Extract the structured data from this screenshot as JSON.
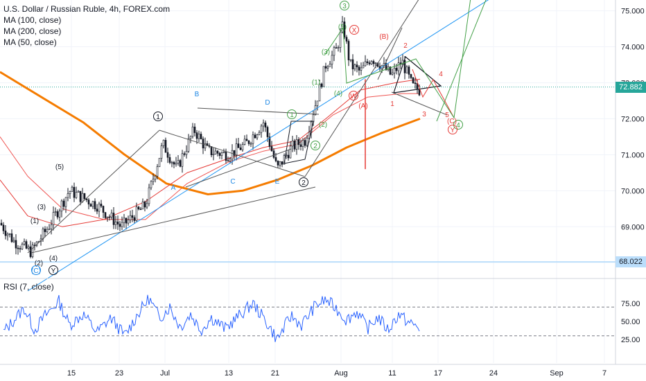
{
  "header": {
    "title": "U.S. Dollar / Russian Ruble, 4h, FOREX.com",
    "indicators": [
      "MA (100, close)",
      "MA (200, close)",
      "MA (50, close)"
    ],
    "rsi_label": "RSI (7, close)"
  },
  "price_tags": {
    "current": "72.882",
    "level": "68.022"
  },
  "colors": {
    "price": "#131722",
    "ma100": "#ef5350",
    "ma200": "#f57c00",
    "ma50": "#e53935",
    "trend": "#2196f3",
    "rsi": "#2962ff",
    "wave_green": "#43a047",
    "wave_red": "#e53935",
    "level_tag": "#bbdefb",
    "current_tag": "#26a69a"
  },
  "chart_data": {
    "type": "line",
    "title": "U.S. Dollar / Russian Ruble, 4h, FOREX.com",
    "ylim": [
      67.6,
      75.3
    ],
    "y_ticks": [
      69.0,
      70.0,
      71.0,
      72.0,
      73.0,
      74.0,
      75.0
    ],
    "y_tick_labels": [
      "69.000",
      "70.000",
      "71.000",
      "72.000",
      "73.000",
      "74.000",
      "75.000"
    ],
    "x_ticks": [
      "15",
      "23",
      "Jul",
      "13",
      "21",
      "Aug",
      "11",
      "17",
      "24",
      "Sep",
      "7"
    ],
    "grid": true,
    "price_anchors": [
      [
        0,
        69.1
      ],
      [
        20,
        68.6
      ],
      [
        45,
        68.3
      ],
      [
        70,
        69.0
      ],
      [
        100,
        70.0
      ],
      [
        140,
        69.6
      ],
      [
        175,
        69.0
      ],
      [
        210,
        69.6
      ],
      [
        235,
        71.3
      ],
      [
        255,
        70.6
      ],
      [
        280,
        71.7
      ],
      [
        300,
        71.1
      ],
      [
        330,
        71.0
      ],
      [
        355,
        71.3
      ],
      [
        380,
        71.9
      ],
      [
        400,
        70.6
      ],
      [
        420,
        71.2
      ],
      [
        440,
        71.4
      ],
      [
        455,
        72.4
      ],
      [
        470,
        73.5
      ],
      [
        485,
        73.9
      ],
      [
        495,
        74.6
      ],
      [
        505,
        73.5
      ],
      [
        520,
        73.3
      ],
      [
        535,
        73.7
      ],
      [
        550,
        73.5
      ],
      [
        565,
        73.2
      ],
      [
        580,
        73.6
      ],
      [
        595,
        72.9
      ],
      [
        605,
        72.8
      ]
    ],
    "series": [
      {
        "name": "MA (100, close)",
        "points": [
          [
            0,
            71.5
          ],
          [
            40,
            70.4
          ],
          [
            90,
            69.5
          ],
          [
            150,
            69.2
          ],
          [
            210,
            69.2
          ],
          [
            270,
            70.2
          ],
          [
            330,
            70.8
          ],
          [
            380,
            71.1
          ],
          [
            430,
            71.3
          ],
          [
            480,
            72.1
          ],
          [
            530,
            72.6
          ],
          [
            580,
            72.7
          ],
          [
            606,
            72.7
          ]
        ]
      },
      {
        "name": "MA (200, close)",
        "points": [
          [
            0,
            73.3
          ],
          [
            60,
            72.6
          ],
          [
            120,
            71.9
          ],
          [
            180,
            71.0
          ],
          [
            240,
            70.2
          ],
          [
            300,
            69.9
          ],
          [
            350,
            70.0
          ],
          [
            400,
            70.3
          ],
          [
            450,
            70.7
          ],
          [
            500,
            71.2
          ],
          [
            550,
            71.6
          ],
          [
            606,
            72.0
          ]
        ]
      },
      {
        "name": "MA (50, close)",
        "points": [
          [
            0,
            70.3
          ],
          [
            40,
            69.3
          ],
          [
            90,
            69.0
          ],
          [
            150,
            69.2
          ],
          [
            210,
            69.7
          ],
          [
            270,
            70.5
          ],
          [
            330,
            70.9
          ],
          [
            380,
            71.2
          ],
          [
            430,
            71.4
          ],
          [
            470,
            72.0
          ],
          [
            520,
            72.8
          ],
          [
            570,
            73.0
          ],
          [
            606,
            73.1
          ]
        ]
      }
    ],
    "rsi": {
      "ylim": [
        0,
        100
      ],
      "levels": [
        70,
        30
      ],
      "y_tick_labels": [
        "75.00",
        "50.00",
        "25.00"
      ],
      "points": [
        [
          5,
          35
        ],
        [
          20,
          52
        ],
        [
          35,
          68
        ],
        [
          50,
          38
        ],
        [
          65,
          58
        ],
        [
          85,
          78
        ],
        [
          100,
          45
        ],
        [
          120,
          60
        ],
        [
          140,
          35
        ],
        [
          160,
          55
        ],
        [
          180,
          30
        ],
        [
          200,
          62
        ],
        [
          215,
          82
        ],
        [
          230,
          55
        ],
        [
          245,
          70
        ],
        [
          260,
          42
        ],
        [
          275,
          60
        ],
        [
          290,
          38
        ],
        [
          305,
          55
        ],
        [
          325,
          40
        ],
        [
          345,
          58
        ],
        [
          365,
          75
        ],
        [
          385,
          48
        ],
        [
          400,
          25
        ],
        [
          420,
          58
        ],
        [
          435,
          45
        ],
        [
          455,
          72
        ],
        [
          470,
          80
        ],
        [
          485,
          68
        ],
        [
          500,
          52
        ],
        [
          515,
          64
        ],
        [
          530,
          40
        ],
        [
          545,
          56
        ],
        [
          560,
          38
        ],
        [
          575,
          60
        ],
        [
          590,
          48
        ],
        [
          606,
          41
        ]
      ]
    },
    "annotations": [
      "(1)",
      "(2)",
      "(3)",
      "(4)",
      "(5)",
      "(C)",
      "(Y)",
      "(W)",
      "(X)",
      "(A)",
      "(B)",
      "A",
      "B",
      "C",
      "D",
      "E",
      "1",
      "2",
      "3",
      "4",
      "5"
    ]
  }
}
